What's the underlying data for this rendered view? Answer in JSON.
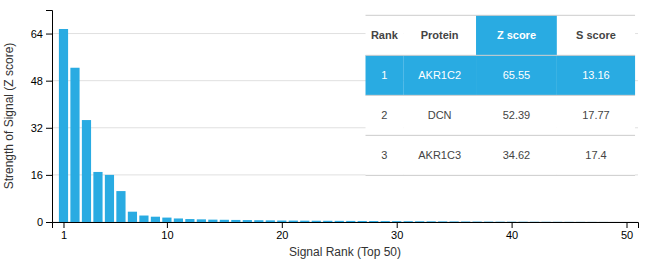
{
  "chart_data": {
    "type": "bar",
    "xlabel": "Signal Rank (Top 50)",
    "ylabel": "Strength of Signal (Z score)",
    "x": [
      1,
      2,
      3,
      4,
      5,
      6,
      7,
      8,
      9,
      10,
      11,
      12,
      13,
      14,
      15,
      16,
      17,
      18,
      19,
      20,
      21,
      22,
      23,
      24,
      25,
      26,
      27,
      28,
      29,
      30,
      31,
      32,
      33,
      34,
      35,
      36,
      37,
      38,
      39,
      40,
      41,
      42,
      43,
      44,
      45,
      46,
      47,
      48,
      49,
      50
    ],
    "values": [
      65.55,
      52.39,
      34.62,
      17.0,
      16.0,
      10.5,
      3.5,
      2.2,
      1.8,
      1.5,
      1.2,
      1.0,
      0.9,
      0.8,
      0.75,
      0.7,
      0.65,
      0.6,
      0.55,
      0.5,
      0.48,
      0.45,
      0.43,
      0.41,
      0.39,
      0.37,
      0.35,
      0.33,
      0.31,
      0.29,
      0.27,
      0.25,
      0.23,
      0.21,
      0.19,
      0.17,
      0.15,
      0.13,
      0.11,
      0.1,
      0.09,
      0.08,
      0.07,
      0.06,
      0.05,
      0.04,
      0.03,
      0.02,
      0.01,
      0.005
    ],
    "color": "#29ABE2",
    "xlim": [
      0,
      51
    ],
    "xticks": [
      1,
      10,
      20,
      30,
      40,
      50
    ],
    "ylim": [
      0,
      72
    ],
    "yticks": [
      0,
      16,
      32,
      48,
      64
    ],
    "grid": true,
    "table": [
      [
        "Rank",
        "Protein",
        "Z score",
        "S score"
      ],
      [
        "1",
        "AKR1C2",
        "65.55",
        "13.16"
      ],
      [
        "2",
        "DCN",
        "52.39",
        "17.77"
      ],
      [
        "3",
        "AKR1C3",
        "34.62",
        "17.4"
      ]
    ]
  }
}
